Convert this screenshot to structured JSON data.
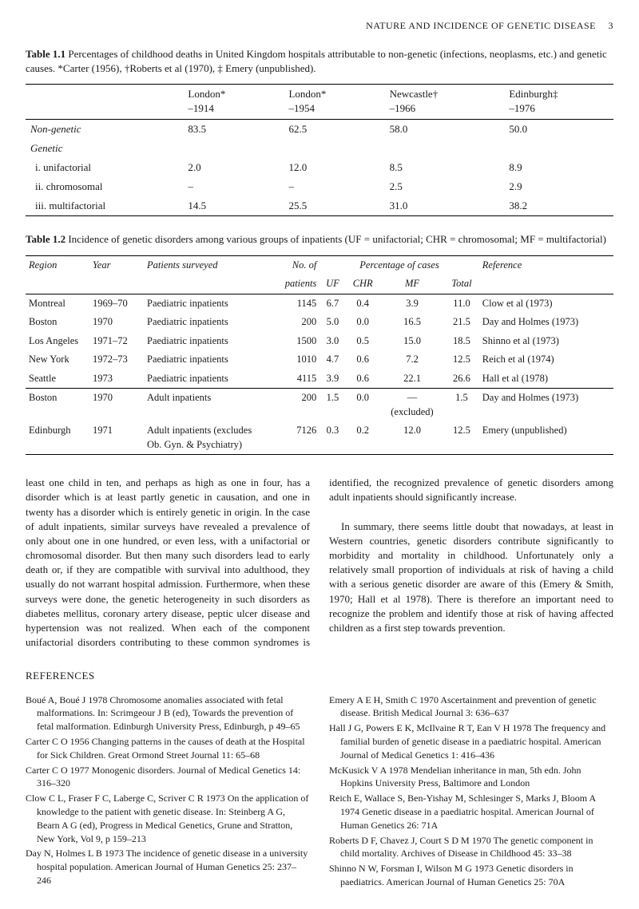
{
  "header": {
    "running_title": "NATURE AND INCIDENCE OF GENETIC DISEASE",
    "page_number": "3"
  },
  "table1": {
    "caption_bold": "Table 1.1",
    "caption_rest": " Percentages of childhood deaths in United Kingdom hospitals attributable to non-genetic (infections, neoplasms, etc.) and genetic causes. *Carter (1956), †Roberts et al (1970), ‡ Emery (unpublished).",
    "cols": [
      {
        "label": "London*",
        "sub": "–1914"
      },
      {
        "label": "London*",
        "sub": "–1954"
      },
      {
        "label": "Newcastle†",
        "sub": "–1966"
      },
      {
        "label": "Edinburgh‡",
        "sub": "–1976"
      }
    ],
    "rows": [
      {
        "label": "Non-genetic",
        "italic": true,
        "vals": [
          "83.5",
          "62.5",
          "58.0",
          "50.0"
        ]
      },
      {
        "label": "Genetic",
        "italic": true,
        "vals": [
          "",
          "",
          "",
          ""
        ]
      },
      {
        "label": "i. unifactorial",
        "sub": true,
        "vals": [
          "2.0",
          "12.0",
          "8.5",
          "8.9"
        ]
      },
      {
        "label": "ii. chromosomal",
        "sub": true,
        "vals": [
          "–",
          "–",
          "2.5",
          "2.9"
        ]
      },
      {
        "label": "iii. multifactorial",
        "sub": true,
        "vals": [
          "14.5",
          "25.5",
          "31.0",
          "38.2"
        ]
      }
    ]
  },
  "table2": {
    "caption_bold": "Table 1.2",
    "caption_rest": " Incidence of genetic disorders among various groups of inpatients (UF = unifactorial; CHR = chromosomal; MF = multifactorial)",
    "head": {
      "region": "Region",
      "year": "Year",
      "surveyed": "Patients surveyed",
      "nof": "No. of",
      "nof_sub": "patients",
      "pct": "Percentage of cases",
      "uf": "UF",
      "chr": "CHR",
      "mf": "MF",
      "total": "Total",
      "ref": "Reference"
    },
    "rows": [
      {
        "region": "Montreal",
        "year": "1969–70",
        "surveyed": "Paediatric inpatients",
        "n": "1145",
        "uf": "6.7",
        "chr": "0.4",
        "mf": "3.9",
        "total": "11.0",
        "ref": "Clow et al (1973)"
      },
      {
        "region": "Boston",
        "year": "1970",
        "surveyed": "Paediatric inpatients",
        "n": "200",
        "uf": "5.0",
        "chr": "0.0",
        "mf": "16.5",
        "total": "21.5",
        "ref": "Day and Holmes (1973)"
      },
      {
        "region": "Los Angeles",
        "year": "1971–72",
        "surveyed": "Paediatric inpatients",
        "n": "1500",
        "uf": "3.0",
        "chr": "0.5",
        "mf": "15.0",
        "total": "18.5",
        "ref": "Shinno et al (1973)"
      },
      {
        "region": "New York",
        "year": "1972–73",
        "surveyed": "Paediatric inpatients",
        "n": "1010",
        "uf": "4.7",
        "chr": "0.6",
        "mf": "7.2",
        "total": "12.5",
        "ref": "Reich et al (1974)"
      },
      {
        "region": "Seattle",
        "year": "1973",
        "surveyed": "Paediatric inpatients",
        "n": "4115",
        "uf": "3.9",
        "chr": "0.6",
        "mf": "22.1",
        "total": "26.6",
        "ref": "Hall et al (1978)"
      }
    ],
    "rows2": [
      {
        "region": "Boston",
        "year": "1970",
        "surveyed": "Adult inpatients",
        "n": "200",
        "uf": "1.5",
        "chr": "0.0",
        "mf": "—",
        "mf2": "(excluded)",
        "total": "1.5",
        "ref": "Day and Holmes (1973)"
      },
      {
        "region": "Edinburgh",
        "year": "1971",
        "surveyed": "Adult inpatients (excludes Ob. Gyn. & Psychiatry)",
        "n": "7126",
        "uf": "0.3",
        "chr": "0.2",
        "mf": "12.0",
        "total": "12.5",
        "ref": "Emery (unpublished)"
      }
    ]
  },
  "body": {
    "p1": "least one child in ten, and perhaps as high as one in four, has a disorder which is at least partly genetic in causation, and one in twenty has a disorder which is entirely genetic in origin. In the case of adult inpatients, similar surveys have revealed a prevalence of only about one in one hundred, or even less, with a unifactorial or chromosomal disorder. But then many such disorders lead to early death or, if they are compatible with survival into adulthood, they usually do not warrant hospital admission. Furthermore, when these surveys were done, the genetic heterogeneity in such disorders as diabetes mellitus, coronary artery disease, peptic ulcer disease and hypertension was not realized. When each of the com",
    "p2": "ponent unifactorial disorders contributing to these common syndromes is identified, the recognized prevalence of genetic disorders among adult inpatients should significantly increase.",
    "p3": "In summary, there seems little doubt that nowadays, at least in Western countries, genetic disorders contribute significantly to morbidity and mortality in childhood. Unfortunately only a relatively small proportion of individuals at risk of having a child with a serious genetic disorder are aware of this (Emery & Smith, 1970; Hall et al 1978). There is therefore an important need to recognize the problem and identify those at risk of having affected children as a first step towards prevention."
  },
  "refs": {
    "heading": "REFERENCES",
    "items": [
      "Boué A, Boué J 1978 Chromosome anomalies associated with fetal malformations. In: Scrimgeour J B (ed), Towards the prevention of fetal malformation. Edinburgh University Press, Edinburgh, p 49–65",
      "Carter C O 1956 Changing patterns in the causes of death at the Hospital for Sick Children. Great Ormond Street Journal 11: 65–68",
      "Carter C O 1977 Monogenic disorders. Journal of Medical Genetics 14: 316–320",
      "Clow C L, Fraser F C, Laberge C, Scriver C R 1973 On the application of knowledge to the patient with genetic disease. In: Steinberg A G, Bearn A G (ed), Progress in Medical Genetics, Grune and Stratton, New York, Vol 9, p 159–213",
      "Day N, Holmes L B 1973 The incidence of genetic disease in a university hospital population. American Journal of Human Genetics 25: 237– 246",
      "Emery A E H, Smith C 1970 Ascertainment and prevention of genetic disease. British Medical Journal 3: 636–637",
      "Hall J G, Powers E K, McIlvaine R T, Ean V H 1978 The frequency and familial burden of genetic disease in a paediatric hospital. American Journal of Medical Genetics 1: 416–436",
      "McKusick V A 1978 Mendelian inheritance in man, 5th edn. John Hopkins University Press, Baltimore and London",
      "Reich E, Wallace S, Ben-Yishay M, Schlesinger S, Marks J, Bloom A 1974 Genetic disease in a paediatric hospital. American Journal of Human Genetics 26: 71A",
      "Roberts D F, Chavez J, Court S D M 1970 The genetic component in child mortality. Archives of Disease in Childhood 45: 33–38",
      "Shinno N W, Forsman I, Wilson M G 1973 Genetic disorders in paediatrics. American Journal of Human Genetics 25: 70A"
    ]
  }
}
